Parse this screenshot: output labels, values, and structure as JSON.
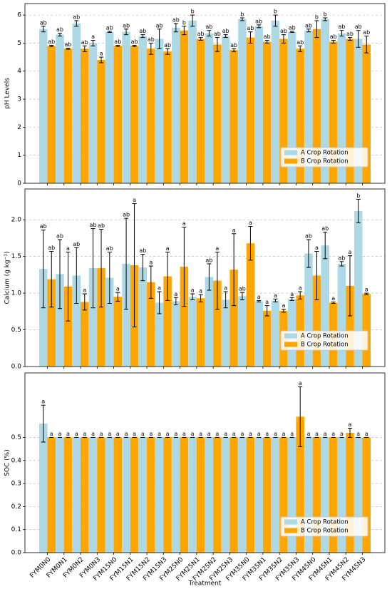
{
  "chart_data": [
    {
      "type": "bar",
      "ylabel": "pH Levels",
      "ylim": [
        0,
        6.41
      ],
      "yticks": [
        0,
        1,
        2,
        3,
        4,
        5,
        6
      ],
      "grid": true,
      "legend": "lower right",
      "series": [
        {
          "name": "A Crop Rotation",
          "color": "#add8e6",
          "values": [
            5.5,
            5.3,
            5.7,
            5.0,
            5.4,
            5.4,
            5.25,
            5.15,
            5.55,
            5.8,
            5.35,
            5.25,
            5.85,
            5.6,
            5.8,
            5.4,
            5.45,
            5.85,
            5.35,
            5.15
          ],
          "errors": [
            0.1,
            0.05,
            0.1,
            0.1,
            0.02,
            0.1,
            0.05,
            0.35,
            0.15,
            0.2,
            0.1,
            0.05,
            0.05,
            0.05,
            0.2,
            0.02,
            0.05,
            0.05,
            0.1,
            0.3
          ],
          "letters": [
            "ab",
            "ab",
            "ab",
            "a",
            "ab",
            "ab",
            "ab",
            "ab",
            "ab",
            "b",
            "ab",
            "ab",
            "b",
            "ab",
            "b",
            "ab",
            "ab",
            "b",
            "ab",
            "ab"
          ]
        },
        {
          "name": "B Crop Rotation",
          "color": "#ffa500",
          "values": [
            4.9,
            4.8,
            4.8,
            4.4,
            4.9,
            4.9,
            4.8,
            4.7,
            5.45,
            5.15,
            4.95,
            4.75,
            5.2,
            5.05,
            5.15,
            4.8,
            5.5,
            5.05,
            5.15,
            4.95
          ],
          "errors": [
            0.02,
            0.02,
            0.1,
            0.1,
            0.02,
            0.02,
            0.2,
            0.1,
            0.15,
            0.05,
            0.25,
            0.05,
            0.2,
            0.05,
            0.15,
            0.1,
            0.3,
            0.05,
            0.05,
            0.3
          ],
          "letters": [
            "ab",
            "ab",
            "ab",
            "a",
            "ab",
            "ab",
            "ab",
            "ab",
            "b",
            "ab",
            "ab",
            "ab",
            "ab",
            "ab",
            "ab",
            "ab",
            "b",
            "ab",
            "ab",
            "ab"
          ]
        }
      ]
    },
    {
      "type": "bar",
      "ylabel": "Calcium (g kg⁻¹)",
      "ylim": [
        0,
        2.42
      ],
      "yticks": [
        {
          "value": 0,
          "label": "0.0"
        },
        {
          "value": 0.5,
          "label": "0.5"
        },
        {
          "value": 1,
          "label": "1.0"
        },
        {
          "value": 1.5,
          "label": "1.5"
        },
        {
          "value": 2,
          "label": "2.0"
        }
      ],
      "grid": true,
      "legend": "lower right",
      "series": [
        {
          "name": "A Crop Rotation",
          "color": "#add8e6",
          "values": [
            1.33,
            1.26,
            1.24,
            1.34,
            1.21,
            1.4,
            1.35,
            0.87,
            0.89,
            0.95,
            1.22,
            0.91,
            0.96,
            0.89,
            0.9,
            0.92,
            1.54,
            1.65,
            1.4,
            2.12
          ],
          "errors": [
            0.53,
            0.47,
            0.38,
            0.54,
            0.35,
            0.62,
            0.18,
            0.15,
            0.05,
            0.04,
            0.18,
            0.11,
            0.05,
            0.01,
            0.02,
            0.02,
            0.19,
            0.18,
            0.03,
            0.16
          ],
          "letters": [
            "ab",
            "ab",
            "ab",
            "ab",
            "ab",
            "ab",
            "ab",
            "a",
            "a",
            "a",
            "ab",
            "a",
            "ab",
            "a",
            "a",
            "a",
            "ab",
            "ab",
            "ab",
            "b"
          ]
        },
        {
          "name": "B Crop Rotation",
          "color": "#ffa500",
          "values": [
            1.19,
            1.09,
            0.88,
            1.34,
            0.95,
            1.38,
            1.15,
            1.23,
            1.36,
            0.93,
            1.17,
            1.32,
            1.68,
            0.76,
            0.76,
            0.97,
            1.24,
            0.87,
            1.1,
            0.99
          ],
          "errors": [
            0.38,
            0.47,
            0.11,
            0.53,
            0.06,
            0.84,
            0.22,
            0.33,
            0.54,
            0.05,
            0.39,
            0.49,
            0.23,
            0.07,
            0.02,
            0.05,
            0.33,
            0.01,
            0.41,
            0.01
          ],
          "letters": [
            "ab",
            "a",
            "a",
            "ab",
            "a",
            "a",
            "a",
            "a",
            "a",
            "a",
            "a",
            "a",
            "a",
            "a",
            "a",
            "a",
            "a",
            "a",
            "a",
            "a"
          ]
        }
      ]
    },
    {
      "type": "bar",
      "ylabel": "SOC (%)",
      "xlabel": "Treatment",
      "ylim": [
        0,
        0.78
      ],
      "yticks": [
        {
          "value": 0,
          "label": "0.0"
        },
        {
          "value": 0.1,
          "label": "0.1"
        },
        {
          "value": 0.2,
          "label": "0.2"
        },
        {
          "value": 0.3,
          "label": "0.3"
        },
        {
          "value": 0.4,
          "label": "0.4"
        },
        {
          "value": 0.5,
          "label": "0.5"
        }
      ],
      "grid": true,
      "legend": "lower right",
      "categories": [
        "FYM0N0",
        "FYM0N1",
        "FYM0N2",
        "FYM0N3",
        "FYM15N0",
        "FYM15N1",
        "FYM15N2",
        "FYM15N3",
        "FYM25N0",
        "FYM25N1",
        "FYM25N2",
        "FYM25N3",
        "FYM35N0",
        "FYM35N1",
        "FYM35N2",
        "FYM35N3",
        "FYM45N0",
        "FYM45N1",
        "FYM45N2",
        "FYM45N3"
      ],
      "series": [
        {
          "name": "A Crop Rotation",
          "color": "#add8e6",
          "values": [
            0.56,
            0.5,
            0.5,
            0.5,
            0.5,
            0.5,
            0.5,
            0.5,
            0.5,
            0.5,
            0.5,
            0.5,
            0.5,
            0.5,
            0.5,
            0.5,
            0.5,
            0.5,
            0.5,
            0.5
          ],
          "errors": [
            0.08,
            0,
            0,
            0,
            0,
            0,
            0,
            0,
            0,
            0,
            0,
            0,
            0,
            0,
            0,
            0,
            0,
            0,
            0,
            0
          ],
          "letters": [
            "a",
            "a",
            "a",
            "a",
            "a",
            "a",
            "a",
            "a",
            "a",
            "a",
            "a",
            "a",
            "a",
            "a",
            "a",
            "a",
            "a",
            "a",
            "a",
            "a"
          ]
        },
        {
          "name": "B Crop Rotation",
          "color": "#ffa500",
          "values": [
            0.5,
            0.5,
            0.5,
            0.5,
            0.5,
            0.5,
            0.5,
            0.5,
            0.5,
            0.5,
            0.5,
            0.5,
            0.5,
            0.5,
            0.5,
            0.59,
            0.5,
            0.5,
            0.52,
            0.5
          ],
          "errors": [
            0,
            0,
            0,
            0,
            0,
            0,
            0,
            0,
            0,
            0,
            0,
            0,
            0,
            0,
            0,
            0.13,
            0,
            0,
            0.02,
            0
          ],
          "letters": [
            "a",
            "a",
            "a",
            "a",
            "a",
            "a",
            "a",
            "a",
            "a",
            "a",
            "a",
            "a",
            "a",
            "a",
            "a",
            "a",
            "a",
            "a",
            "a",
            "a"
          ]
        }
      ]
    }
  ]
}
